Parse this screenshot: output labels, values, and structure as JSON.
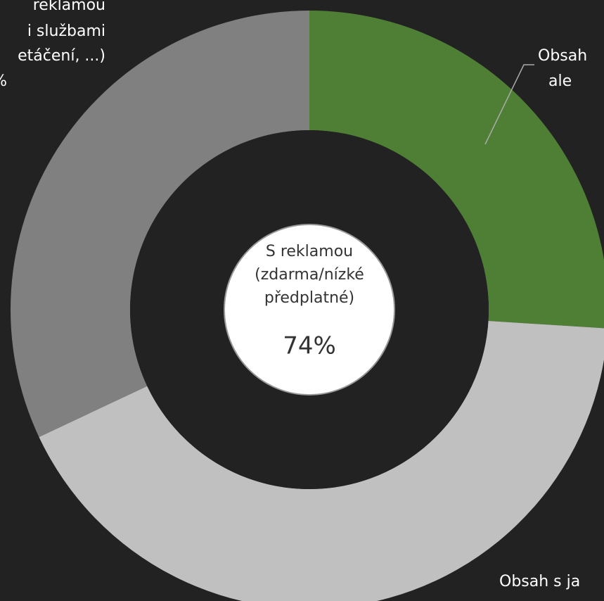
{
  "chart_data": {
    "type": "donut",
    "categories": [
      [
        "Obsah",
        "ale"
      ],
      [
        "Obsah s ja"
      ],
      [
        "reklamou",
        "i službami",
        "etáčení, ...)",
        "%"
      ]
    ],
    "values": [
      26,
      42,
      32
    ],
    "colors": [
      "#4f7f35",
      "#c0c0c0",
      "#808080"
    ],
    "center_label": [
      "S reklamou",
      "(zdarma/nízké",
      "předplatné)"
    ],
    "center_value": 74,
    "center_value_label": "74%"
  }
}
